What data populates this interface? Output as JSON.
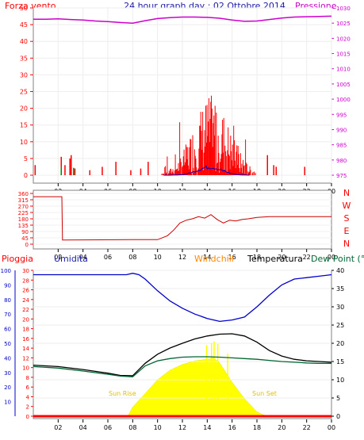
{
  "chart_data": [
    {
      "type": "line",
      "title": "24 hour graph day : 02 Ottobre 2014",
      "left_label": "Forza vento",
      "right_label": "Pressione",
      "x_ticks": [
        "02",
        "04",
        "06",
        "08",
        "10",
        "12",
        "14",
        "16",
        "18",
        "20",
        "22",
        "00"
      ],
      "y_left_ticks": [
        "0",
        "5",
        "10",
        "15",
        "20",
        "25",
        "30",
        "35",
        "40",
        "45",
        "50"
      ],
      "y_right_ticks": [
        "975",
        "980",
        "985",
        "990",
        "995",
        "1000",
        "1005",
        "1010",
        "1015",
        "1020",
        "1025",
        "1030"
      ],
      "ylim_left": [
        0,
        50
      ],
      "ylim_right": [
        975,
        1030
      ],
      "xlim_hours": [
        0,
        24
      ],
      "series": [
        {
          "name": "Pressione",
          "color": "#cc00cc",
          "axis": "right",
          "x": [
            0,
            1,
            2,
            3,
            4,
            5,
            6,
            7,
            8,
            9,
            10,
            11,
            12,
            13,
            14,
            15,
            16,
            17,
            18,
            19,
            20,
            21,
            22,
            23,
            24
          ],
          "values": [
            1026.3,
            1026.3,
            1026.4,
            1026.2,
            1026.0,
            1025.7,
            1025.5,
            1025.2,
            1025.0,
            1025.8,
            1026.5,
            1026.8,
            1027.0,
            1027.0,
            1026.9,
            1026.6,
            1026.0,
            1025.6,
            1025.7,
            1026.2,
            1026.7,
            1027.0,
            1027.1,
            1027.2,
            1027.3
          ]
        }
      ]
    },
    {
      "type": "line",
      "left_label": "",
      "y_ticks": [
        "0",
        "45",
        "90",
        "135",
        "180",
        "225",
        "270",
        "315",
        "360"
      ],
      "ylim": [
        0,
        360
      ],
      "compass": [
        "N",
        "W",
        "S",
        "E",
        "N"
      ],
      "x_ticks": [
        "02",
        "04",
        "06",
        "08",
        "10",
        "12",
        "14",
        "16",
        "18",
        "20",
        "22",
        "00"
      ],
      "series": [
        {
          "name": "",
          "color": "#cc0000",
          "x": [
            0,
            2.3,
            2.35,
            8,
            10,
            10.8,
            11.3,
            11.8,
            12.3,
            12.8,
            13.3,
            13.8,
            14.3,
            14.8,
            15.3,
            15.8,
            16.3,
            16.8,
            17.3,
            18,
            19,
            21,
            24
          ],
          "values": [
            337,
            337,
            30,
            32,
            32,
            60,
            100,
            150,
            170,
            180,
            195,
            185,
            210,
            175,
            150,
            170,
            165,
            175,
            180,
            190,
            195,
            195,
            195
          ]
        }
      ]
    },
    {
      "type": "area",
      "left_labels": [
        "Pioggia",
        "Umidita"
      ],
      "right_labels": [
        "Windchill",
        "Temperatura",
        "Dew Point (°C"
      ],
      "annotations": [
        "Sun Rise",
        "Sun Set"
      ],
      "x_ticks": [
        "02",
        "04",
        "06",
        "08",
        "10",
        "12",
        "14",
        "16",
        "18",
        "20",
        "22",
        "00"
      ],
      "y_rain_ticks": [
        "0",
        "2",
        "4",
        "6",
        "8",
        "10",
        "12",
        "14",
        "16",
        "18",
        "20",
        "22",
        "24",
        "26",
        "28",
        "30"
      ],
      "y_hum_ticks": [
        "10",
        "20",
        "30",
        "40",
        "50",
        "60",
        "70",
        "80",
        "90",
        "100"
      ],
      "y_temp_ticks": [
        "0",
        "5",
        "10",
        "15",
        "20",
        "25",
        "30",
        "35",
        "40"
      ],
      "ylim_temp": [
        0,
        40
      ],
      "ylim_hum": [
        0,
        100
      ],
      "series": [
        {
          "name": "Umidita",
          "color": "#0000cc",
          "axis": "humidity",
          "x": [
            0,
            2,
            4,
            6,
            7.5,
            8,
            8.5,
            9,
            10,
            11,
            12,
            13,
            14,
            15,
            16,
            17,
            18,
            19,
            20,
            21,
            22,
            23,
            24
          ],
          "values": [
            97,
            97,
            97,
            97,
            97,
            98,
            97,
            94,
            86,
            79,
            74,
            70,
            67,
            65,
            66,
            68,
            75,
            83,
            90,
            94,
            95,
            96,
            97
          ]
        },
        {
          "name": "Temperatura",
          "color": "#000000",
          "axis": "temp",
          "x": [
            0,
            2,
            4,
            6,
            7,
            8,
            9,
            10,
            11,
            12,
            13,
            14,
            15,
            16,
            17,
            18,
            19,
            20,
            21,
            22,
            23,
            24
          ],
          "values": [
            14,
            13.6,
            12.8,
            11.8,
            11.2,
            11.1,
            14.5,
            17,
            18.7,
            20,
            21.2,
            22,
            22.5,
            22.6,
            22,
            20.3,
            18,
            16.5,
            15.6,
            15.2,
            15.0,
            14.8
          ]
        },
        {
          "name": "Dew Point",
          "color": "#006633",
          "axis": "temp",
          "x": [
            0,
            2,
            4,
            6,
            7,
            8,
            9,
            10,
            11,
            12,
            13,
            14,
            15,
            16,
            17,
            18,
            19,
            20,
            21,
            22,
            23,
            24
          ],
          "values": [
            13.6,
            13.2,
            12.4,
            11.5,
            11.0,
            10.8,
            13.8,
            15.2,
            15.8,
            16.2,
            16.3,
            16.3,
            16.2,
            16.0,
            15.8,
            15.6,
            15.3,
            15.0,
            14.8,
            14.6,
            14.5,
            14.5
          ]
        },
        {
          "name": "Sole",
          "color": "#ffff00",
          "axis": "temp",
          "x": [
            7.6,
            8,
            9,
            10,
            11,
            12,
            13,
            14,
            14.5,
            15,
            16,
            17,
            18,
            18.5,
            19
          ],
          "values": [
            0,
            2.5,
            6.2,
            10,
            12.6,
            14.2,
            15.2,
            15.6,
            16,
            14.6,
            9.3,
            4.8,
            1.2,
            0.4,
            0
          ]
        },
        {
          "name": "Pioggia",
          "color": "#ff0000",
          "axis": "rain",
          "x": [
            0,
            24
          ],
          "values": [
            0,
            0
          ]
        }
      ]
    }
  ]
}
